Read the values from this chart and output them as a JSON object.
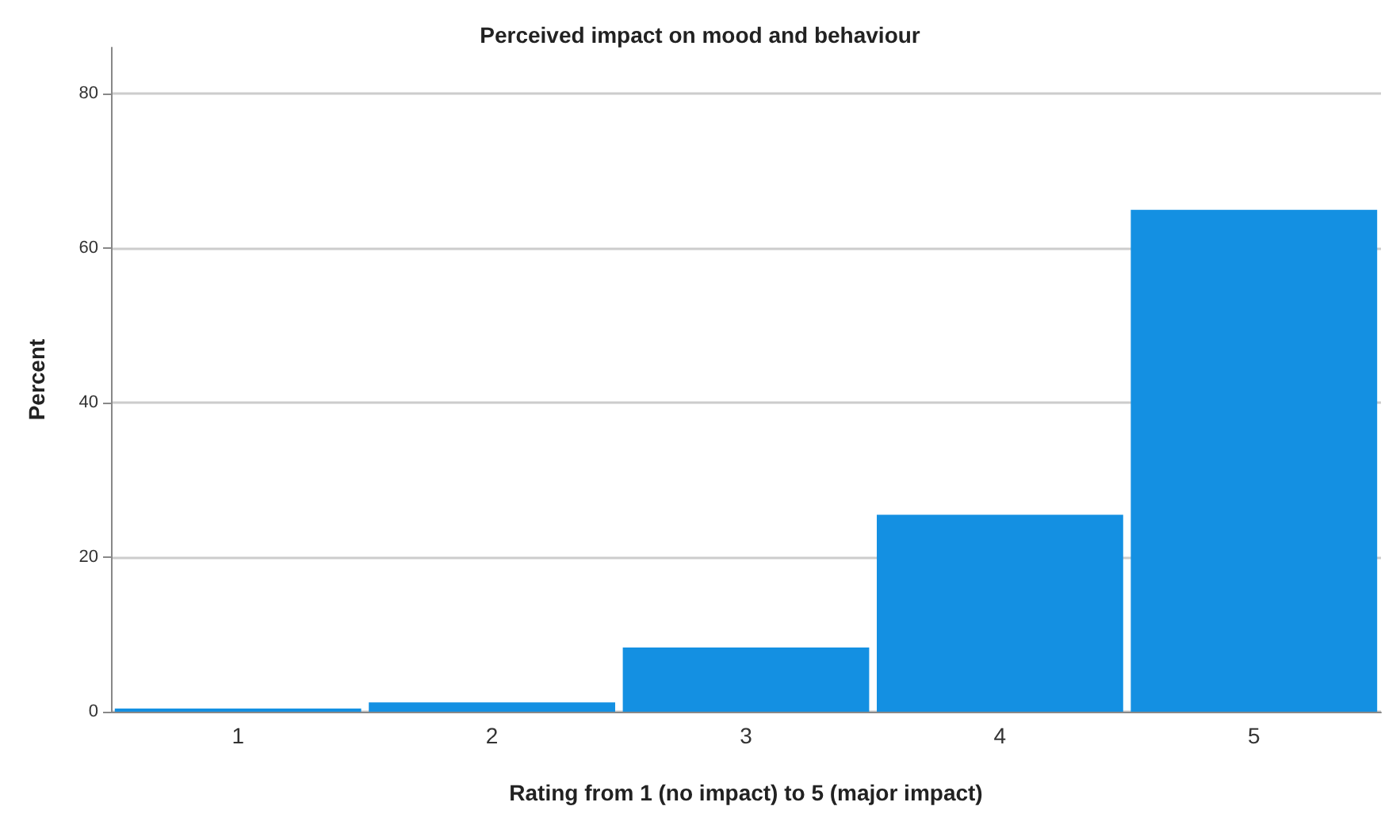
{
  "chart_data": {
    "type": "bar",
    "title": "Perceived impact on mood and behaviour",
    "xlabel": "Rating from 1 (no impact) to 5 (major impact)",
    "ylabel": "Percent",
    "categories": [
      "1",
      "2",
      "3",
      "4",
      "5"
    ],
    "values": [
      0.4,
      1.2,
      8.3,
      25.5,
      65.0
    ],
    "color": "#1490e2",
    "ylim": [
      0,
      86
    ],
    "yticks": [
      0,
      20,
      40,
      60,
      80
    ],
    "grid": "y"
  }
}
